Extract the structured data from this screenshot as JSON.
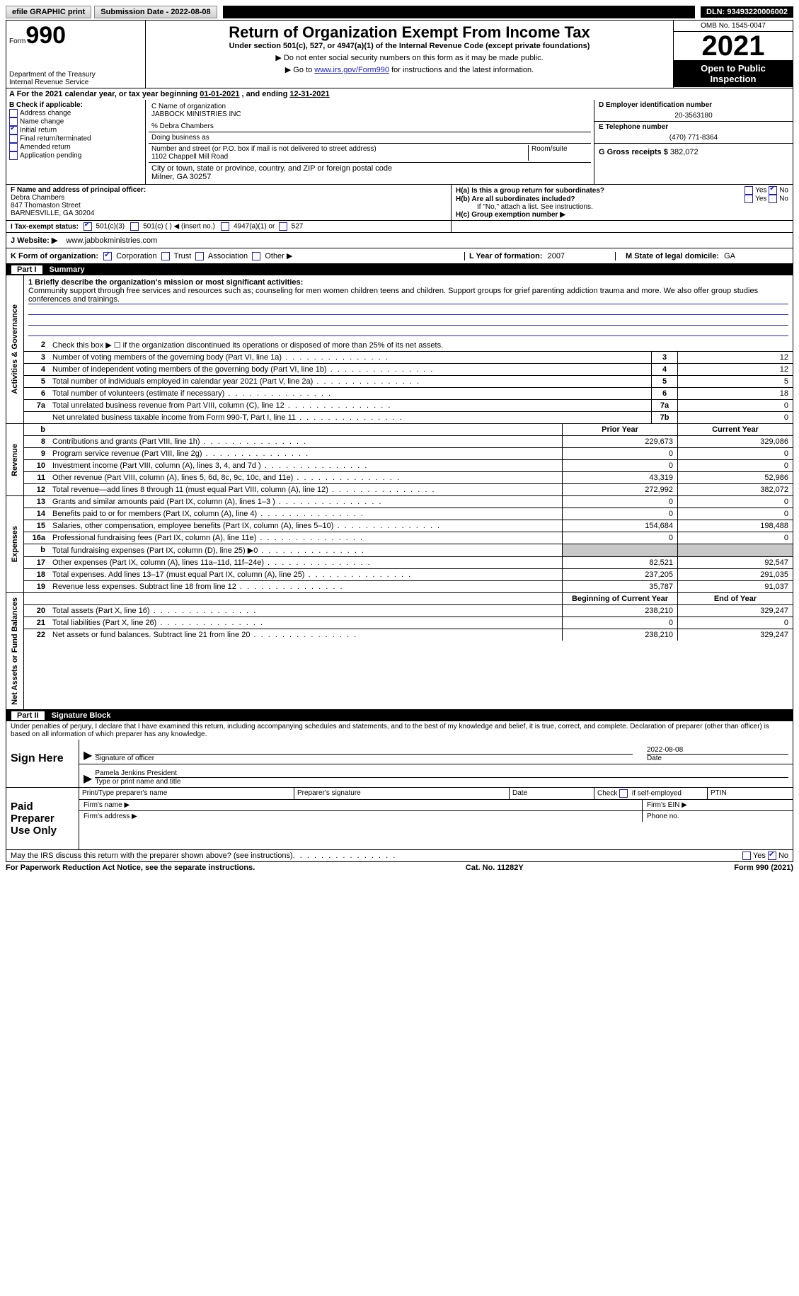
{
  "topbar": {
    "efile": "efile GRAPHIC print",
    "submission": "Submission Date - 2022-08-08",
    "dln": "DLN: 93493220006002"
  },
  "header": {
    "form_word": "Form",
    "form_num": "990",
    "dept": "Department of the Treasury",
    "irs": "Internal Revenue Service",
    "title": "Return of Organization Exempt From Income Tax",
    "sub": "Under section 501(c), 527, or 4947(a)(1) of the Internal Revenue Code (except private foundations)",
    "note1": "▶ Do not enter social security numbers on this form as it may be made public.",
    "note2_a": "▶ Go to ",
    "note2_link": "www.irs.gov/Form990",
    "note2_b": " for instructions and the latest information.",
    "omb": "OMB No. 1545-0047",
    "year": "2021",
    "open": "Open to Public Inspection"
  },
  "period": {
    "a": "A For the 2021 calendar year, or tax year beginning ",
    "b": "01-01-2021",
    "c": "   , and ending ",
    "d": "12-31-2021"
  },
  "B": {
    "hdr": "B Check if applicable:",
    "addr": "Address change",
    "name": "Name change",
    "init": "Initial return",
    "term": "Final return/terminated",
    "amend": "Amended return",
    "app": "Application pending"
  },
  "C": {
    "label": "C Name of organization",
    "org": "JABBOCK MINISTRIES INC",
    "careof": "% Debra Chambers",
    "dba_l": "Doing business as",
    "street_l": "Number and street (or P.O. box if mail is not delivered to street address)",
    "room_l": "Room/suite",
    "street": "1102 Chappell Mill Road",
    "city_l": "City or town, state or province, country, and ZIP or foreign postal code",
    "city": "Milner, GA  30257"
  },
  "D": {
    "label": "D Employer identification number",
    "val": "20-3563180"
  },
  "E": {
    "label": "E Telephone number",
    "val": "(470) 771-8364"
  },
  "G": {
    "label": "G Gross receipts $",
    "val": "382,072"
  },
  "F": {
    "label": "F  Name and address of principal officer:",
    "l1": "Debra Chambers",
    "l2": "847 Thomaston Street",
    "l3": "BARNESVILLE, GA  30204"
  },
  "H": {
    "a": "H(a)  Is this a group return for subordinates?",
    "b": "H(b)  Are all subordinates included?",
    "bnote": "If \"No,\" attach a list. See instructions.",
    "c": "H(c)  Group exemption number ▶",
    "yes": "Yes",
    "no": "No"
  },
  "I": {
    "label": "I   Tax-exempt status:",
    "o1": "501(c)(3)",
    "o2": "501(c) (  ) ◀ (insert no.)",
    "o3": "4947(a)(1) or",
    "o4": "527"
  },
  "J": {
    "label": "J   Website: ▶",
    "val": "www.jabbokministries.com"
  },
  "K": {
    "label": "K Form of organization:",
    "corp": "Corporation",
    "trust": "Trust",
    "assoc": "Association",
    "other": "Other ▶"
  },
  "L": {
    "label": "L Year of formation:",
    "val": "2007"
  },
  "M": {
    "label": "M State of legal domicile:",
    "val": "GA"
  },
  "part1": {
    "num": "Part I",
    "title": "Summary"
  },
  "mission": {
    "l1": "1   Briefly describe the organization's mission or most significant activities:",
    "txt": "Community support through free services and resources such as; counseling for men women children teens and children. Support groups for grief parenting addiction trauma and more. We also offer group studies conferences and trainings."
  },
  "q2": "Check this box ▶ ☐  if the organization discontinued its operations or disposed of more than 25% of its net assets.",
  "rows_gov": [
    {
      "n": "3",
      "t": "Number of voting members of the governing body (Part VI, line 1a)",
      "b": "3",
      "v": "12"
    },
    {
      "n": "4",
      "t": "Number of independent voting members of the governing body (Part VI, line 1b)",
      "b": "4",
      "v": "12"
    },
    {
      "n": "5",
      "t": "Total number of individuals employed in calendar year 2021 (Part V, line 2a)",
      "b": "5",
      "v": "5"
    },
    {
      "n": "6",
      "t": "Total number of volunteers (estimate if necessary)",
      "b": "6",
      "v": "18"
    },
    {
      "n": "7a",
      "t": "Total unrelated business revenue from Part VIII, column (C), line 12",
      "b": "7a",
      "v": "0"
    },
    {
      "n": "",
      "t": "Net unrelated business taxable income from Form 990-T, Part I, line 11",
      "b": "7b",
      "v": "0"
    }
  ],
  "col_hdr": {
    "prior": "Prior Year",
    "current": "Current Year"
  },
  "rows_rev": [
    {
      "n": "8",
      "t": "Contributions and grants (Part VIII, line 1h)",
      "p": "229,673",
      "c": "329,086"
    },
    {
      "n": "9",
      "t": "Program service revenue (Part VIII, line 2g)",
      "p": "0",
      "c": "0"
    },
    {
      "n": "10",
      "t": "Investment income (Part VIII, column (A), lines 3, 4, and 7d )",
      "p": "0",
      "c": "0"
    },
    {
      "n": "11",
      "t": "Other revenue (Part VIII, column (A), lines 5, 6d, 8c, 9c, 10c, and 11e)",
      "p": "43,319",
      "c": "52,986"
    },
    {
      "n": "12",
      "t": "Total revenue—add lines 8 through 11 (must equal Part VIII, column (A), line 12)",
      "p": "272,992",
      "c": "382,072"
    }
  ],
  "rows_exp": [
    {
      "n": "13",
      "t": "Grants and similar amounts paid (Part IX, column (A), lines 1–3 )",
      "p": "0",
      "c": "0"
    },
    {
      "n": "14",
      "t": "Benefits paid to or for members (Part IX, column (A), line 4)",
      "p": "0",
      "c": "0"
    },
    {
      "n": "15",
      "t": "Salaries, other compensation, employee benefits (Part IX, column (A), lines 5–10)",
      "p": "154,684",
      "c": "198,488"
    },
    {
      "n": "16a",
      "t": "Professional fundraising fees (Part IX, column (A), line 11e)",
      "p": "0",
      "c": "0"
    },
    {
      "n": "b",
      "t": "Total fundraising expenses (Part IX, column (D), line 25) ▶0",
      "p": "",
      "c": "",
      "shade": true
    },
    {
      "n": "17",
      "t": "Other expenses (Part IX, column (A), lines 11a–11d, 11f–24e)",
      "p": "82,521",
      "c": "92,547"
    },
    {
      "n": "18",
      "t": "Total expenses. Add lines 13–17 (must equal Part IX, column (A), line 25)",
      "p": "237,205",
      "c": "291,035"
    },
    {
      "n": "19",
      "t": "Revenue less expenses. Subtract line 18 from line 12",
      "p": "35,787",
      "c": "91,037"
    }
  ],
  "col_hdr2": {
    "begin": "Beginning of Current Year",
    "end": "End of Year"
  },
  "rows_net": [
    {
      "n": "20",
      "t": "Total assets (Part X, line 16)",
      "p": "238,210",
      "c": "329,247"
    },
    {
      "n": "21",
      "t": "Total liabilities (Part X, line 26)",
      "p": "0",
      "c": "0"
    },
    {
      "n": "22",
      "t": "Net assets or fund balances. Subtract line 21 from line 20",
      "p": "238,210",
      "c": "329,247"
    }
  ],
  "part2": {
    "num": "Part II",
    "title": "Signature Block"
  },
  "declar": "Under penalties of perjury, I declare that I have examined this return, including accompanying schedules and statements, and to the best of my knowledge and belief, it is true, correct, and complete. Declaration of preparer (other than officer) is based on all information of which preparer has any knowledge.",
  "sign": {
    "here": "Sign Here",
    "sig_l": "Signature of officer",
    "date": "2022-08-08",
    "date_l": "Date",
    "name": "Pamela Jenkins  President",
    "name_l": "Type or print name and title"
  },
  "prep": {
    "label": "Paid Preparer Use Only",
    "c1": "Print/Type preparer's name",
    "c2": "Preparer's signature",
    "c3": "Date",
    "c4a": "Check",
    "c4b": "if self-employed",
    "c5": "PTIN",
    "firm_n": "Firm's name    ▶",
    "firm_e": "Firm's EIN ▶",
    "firm_a": "Firm's address ▶",
    "phone": "Phone no."
  },
  "discuss": {
    "t": "May the IRS discuss this return with the preparer shown above? (see instructions)",
    "yes": "Yes",
    "no": "No"
  },
  "footer": {
    "l": "For Paperwork Reduction Act Notice, see the separate instructions.",
    "m": "Cat. No. 11282Y",
    "r": "Form 990 (2021)"
  },
  "side": {
    "gov": "Activities & Governance",
    "rev": "Revenue",
    "exp": "Expenses",
    "net": "Net Assets or Fund Balances"
  }
}
